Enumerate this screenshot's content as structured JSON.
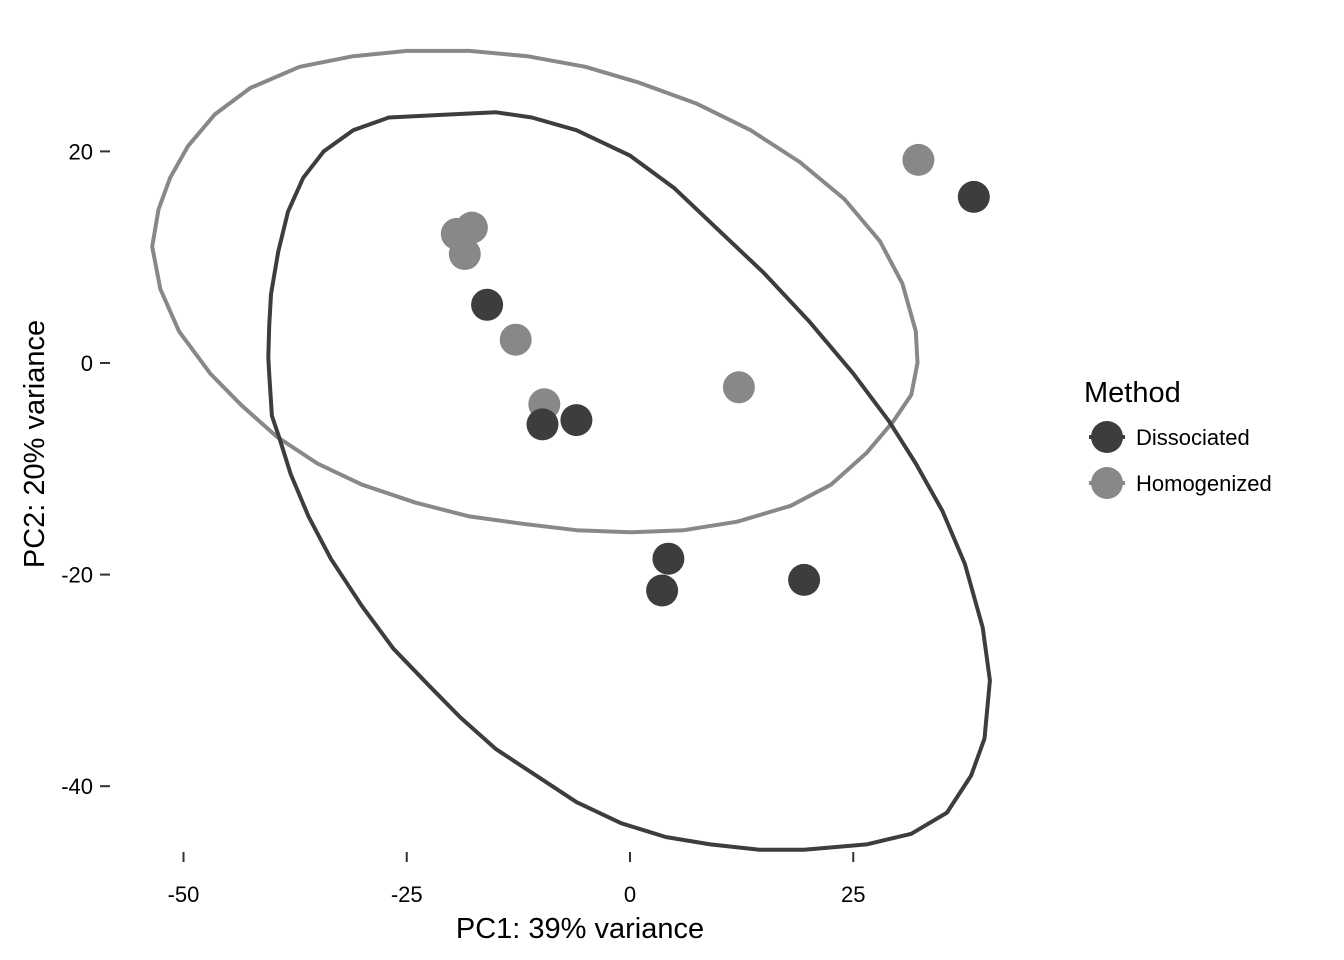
{
  "chart_data": {
    "type": "scatter",
    "title": "",
    "xlabel": "PC1: 39% variance",
    "ylabel": "PC2: 20% variance",
    "xlim": [
      -53.5,
      43
    ],
    "ylim": [
      -46,
      29.5
    ],
    "xticks": [
      -50,
      -25,
      0,
      25
    ],
    "xtick_labels": [
      "-50",
      "-25",
      "0",
      "25"
    ],
    "yticks": [
      -40,
      -20,
      0,
      20
    ],
    "ytick_labels": [
      "-40",
      "-20",
      "0",
      "20"
    ],
    "grid": false,
    "legend": {
      "title": "Method",
      "position": "right"
    },
    "series": [
      {
        "name": "Dissociated",
        "color": "#3d3d3d",
        "points": [
          {
            "x": 38.5,
            "y": 15.7
          },
          {
            "x": -16.0,
            "y": 5.5
          },
          {
            "x": -9.8,
            "y": -5.8
          },
          {
            "x": -6.0,
            "y": -5.4
          },
          {
            "x": 4.3,
            "y": -18.5
          },
          {
            "x": 3.6,
            "y": -21.5
          },
          {
            "x": 19.5,
            "y": -20.5
          }
        ],
        "ellipse": [
          [
            -39.3,
            -7.0
          ],
          [
            -40.1,
            -5.0
          ],
          [
            -40.4,
            -1.0
          ],
          [
            -40.5,
            0.5
          ],
          [
            -40.4,
            3.5
          ],
          [
            -40.2,
            6.5
          ],
          [
            -39.4,
            10.5
          ],
          [
            -38.3,
            14.3
          ],
          [
            -36.6,
            17.5
          ],
          [
            -34.3,
            20.0
          ],
          [
            -31.0,
            22.0
          ],
          [
            -27.0,
            23.2
          ],
          [
            -20.0,
            23.5
          ],
          [
            -15.0,
            23.7
          ],
          [
            -11.0,
            23.2
          ],
          [
            -6.0,
            22.0
          ],
          [
            0.0,
            19.6
          ],
          [
            5.0,
            16.5
          ],
          [
            10.0,
            12.5
          ],
          [
            15.0,
            8.5
          ],
          [
            20.0,
            4.0
          ],
          [
            25.0,
            -1.0
          ],
          [
            29.0,
            -5.5
          ],
          [
            32.0,
            -9.5
          ],
          [
            35.0,
            -14.0
          ],
          [
            37.5,
            -19.0
          ],
          [
            39.5,
            -25.0
          ],
          [
            40.3,
            -30.0
          ],
          [
            39.7,
            -35.5
          ],
          [
            38.2,
            -39.0
          ],
          [
            35.5,
            -42.5
          ],
          [
            31.5,
            -44.5
          ],
          [
            26.5,
            -45.5
          ],
          [
            19.5,
            -46.0
          ],
          [
            14.5,
            -46.0
          ],
          [
            9.0,
            -45.5
          ],
          [
            4.0,
            -44.8
          ],
          [
            -1.0,
            -43.5
          ],
          [
            -6.0,
            -41.5
          ],
          [
            -10.5,
            -39.0
          ],
          [
            -15.0,
            -36.5
          ],
          [
            -19.0,
            -33.5
          ],
          [
            -22.5,
            -30.5
          ],
          [
            -26.5,
            -27.0
          ],
          [
            -30.0,
            -23.0
          ],
          [
            -33.5,
            -18.5
          ],
          [
            -36.0,
            -14.5
          ],
          [
            -38.0,
            -10.5
          ],
          [
            -39.3,
            -7.0
          ]
        ]
      },
      {
        "name": "Homogenized",
        "color": "#888888",
        "points": [
          {
            "x": 32.3,
            "y": 19.2
          },
          {
            "x": -17.7,
            "y": 12.8
          },
          {
            "x": -19.4,
            "y": 12.2
          },
          {
            "x": -18.5,
            "y": 10.3
          },
          {
            "x": -12.8,
            "y": 2.2
          },
          {
            "x": -9.6,
            "y": -3.9
          },
          {
            "x": 12.2,
            "y": -2.3
          }
        ],
        "ellipse": [
          [
            -53.5,
            11.0
          ],
          [
            -52.8,
            14.5
          ],
          [
            -51.5,
            17.5
          ],
          [
            -49.5,
            20.5
          ],
          [
            -46.5,
            23.5
          ],
          [
            -42.5,
            26.0
          ],
          [
            -37.0,
            28.0
          ],
          [
            -31.0,
            29.0
          ],
          [
            -25.0,
            29.5
          ],
          [
            -18.0,
            29.5
          ],
          [
            -11.5,
            29.0
          ],
          [
            -5.0,
            28.0
          ],
          [
            1.0,
            26.5
          ],
          [
            7.5,
            24.5
          ],
          [
            13.5,
            22.0
          ],
          [
            19.0,
            19.0
          ],
          [
            24.0,
            15.5
          ],
          [
            28.0,
            11.5
          ],
          [
            30.5,
            7.5
          ],
          [
            32.0,
            3.0
          ],
          [
            32.2,
            0.0
          ],
          [
            31.5,
            -3.0
          ],
          [
            29.5,
            -5.5
          ],
          [
            26.5,
            -8.5
          ],
          [
            22.5,
            -11.5
          ],
          [
            18.0,
            -13.5
          ],
          [
            12.0,
            -15.0
          ],
          [
            6.0,
            -15.8
          ],
          [
            0.0,
            -16.0
          ],
          [
            -6.0,
            -15.8
          ],
          [
            -12.0,
            -15.2
          ],
          [
            -18.0,
            -14.5
          ],
          [
            -24.0,
            -13.2
          ],
          [
            -30.0,
            -11.5
          ],
          [
            -35.0,
            -9.5
          ],
          [
            -39.5,
            -7.0
          ],
          [
            -43.5,
            -4.0
          ],
          [
            -47.0,
            -1.0
          ],
          [
            -50.5,
            3.0
          ],
          [
            -52.6,
            7.0
          ],
          [
            -53.5,
            11.0
          ]
        ]
      }
    ]
  }
}
